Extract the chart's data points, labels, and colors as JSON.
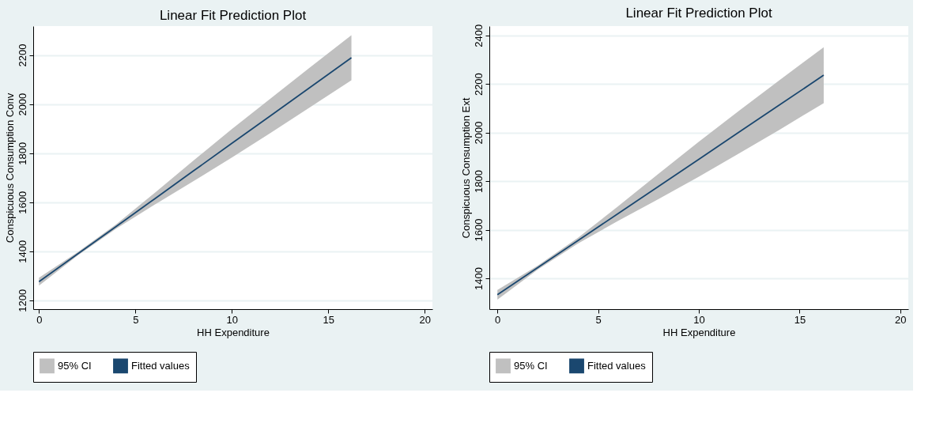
{
  "chart_data": [
    {
      "type": "line",
      "title": "Linear Fit Prediction Plot",
      "xlabel": "HH Expenditure",
      "ylabel": "Conspicuous Consumption Conv",
      "xlim": [
        -0.3,
        20.4
      ],
      "xticks": [
        0,
        5,
        10,
        15,
        20
      ],
      "ylim": [
        1164,
        2318
      ],
      "yticks": [
        1200,
        1400,
        1600,
        1800,
        2000,
        2200
      ],
      "grid": "y",
      "legend": "bottom",
      "series": [
        {
          "name": "95% CI",
          "type": "area",
          "color": "#c0c0c0"
        },
        {
          "name": "Fitted values",
          "type": "line",
          "color": "#1a476f",
          "x": [
            0,
            2,
            4,
            6,
            8,
            10,
            12,
            14,
            16.2
          ],
          "values": [
            1276,
            1389,
            1501,
            1614,
            1727,
            1840,
            1952,
            2065,
            2189
          ],
          "lower": [
            1260,
            1382,
            1492,
            1590,
            1685,
            1782,
            1882,
            1984,
            2097
          ],
          "upper": [
            1292,
            1396,
            1510,
            1638,
            1769,
            1898,
            2022,
            2146,
            2281
          ]
        }
      ]
    },
    {
      "type": "line",
      "title": "Linear Fit Prediction Plot",
      "xlabel": "HH Expenditure",
      "ylabel": "Conspicuous Consumption Ext",
      "xlim": [
        -0.4,
        20.4
      ],
      "xticks": [
        0,
        5,
        10,
        15,
        20
      ],
      "ylim": [
        1273,
        2438
      ],
      "yticks": [
        1400,
        1600,
        1800,
        2000,
        2200,
        2400
      ],
      "grid": "y",
      "legend": "bottom",
      "series": [
        {
          "name": "95% CI",
          "type": "area",
          "color": "#c0c0c0"
        },
        {
          "name": "Fitted values",
          "type": "line",
          "color": "#1a476f",
          "x": [
            0,
            2,
            4,
            6,
            8,
            10,
            12,
            14,
            16.2
          ],
          "values": [
            1332,
            1444,
            1555,
            1667,
            1778,
            1890,
            2002,
            2113,
            2236
          ],
          "lower": [
            1312,
            1436,
            1543,
            1637,
            1726,
            1818,
            1914,
            2011,
            2121
          ],
          "upper": [
            1352,
            1452,
            1567,
            1697,
            1830,
            1962,
            2090,
            2215,
            2351
          ]
        }
      ]
    }
  ]
}
